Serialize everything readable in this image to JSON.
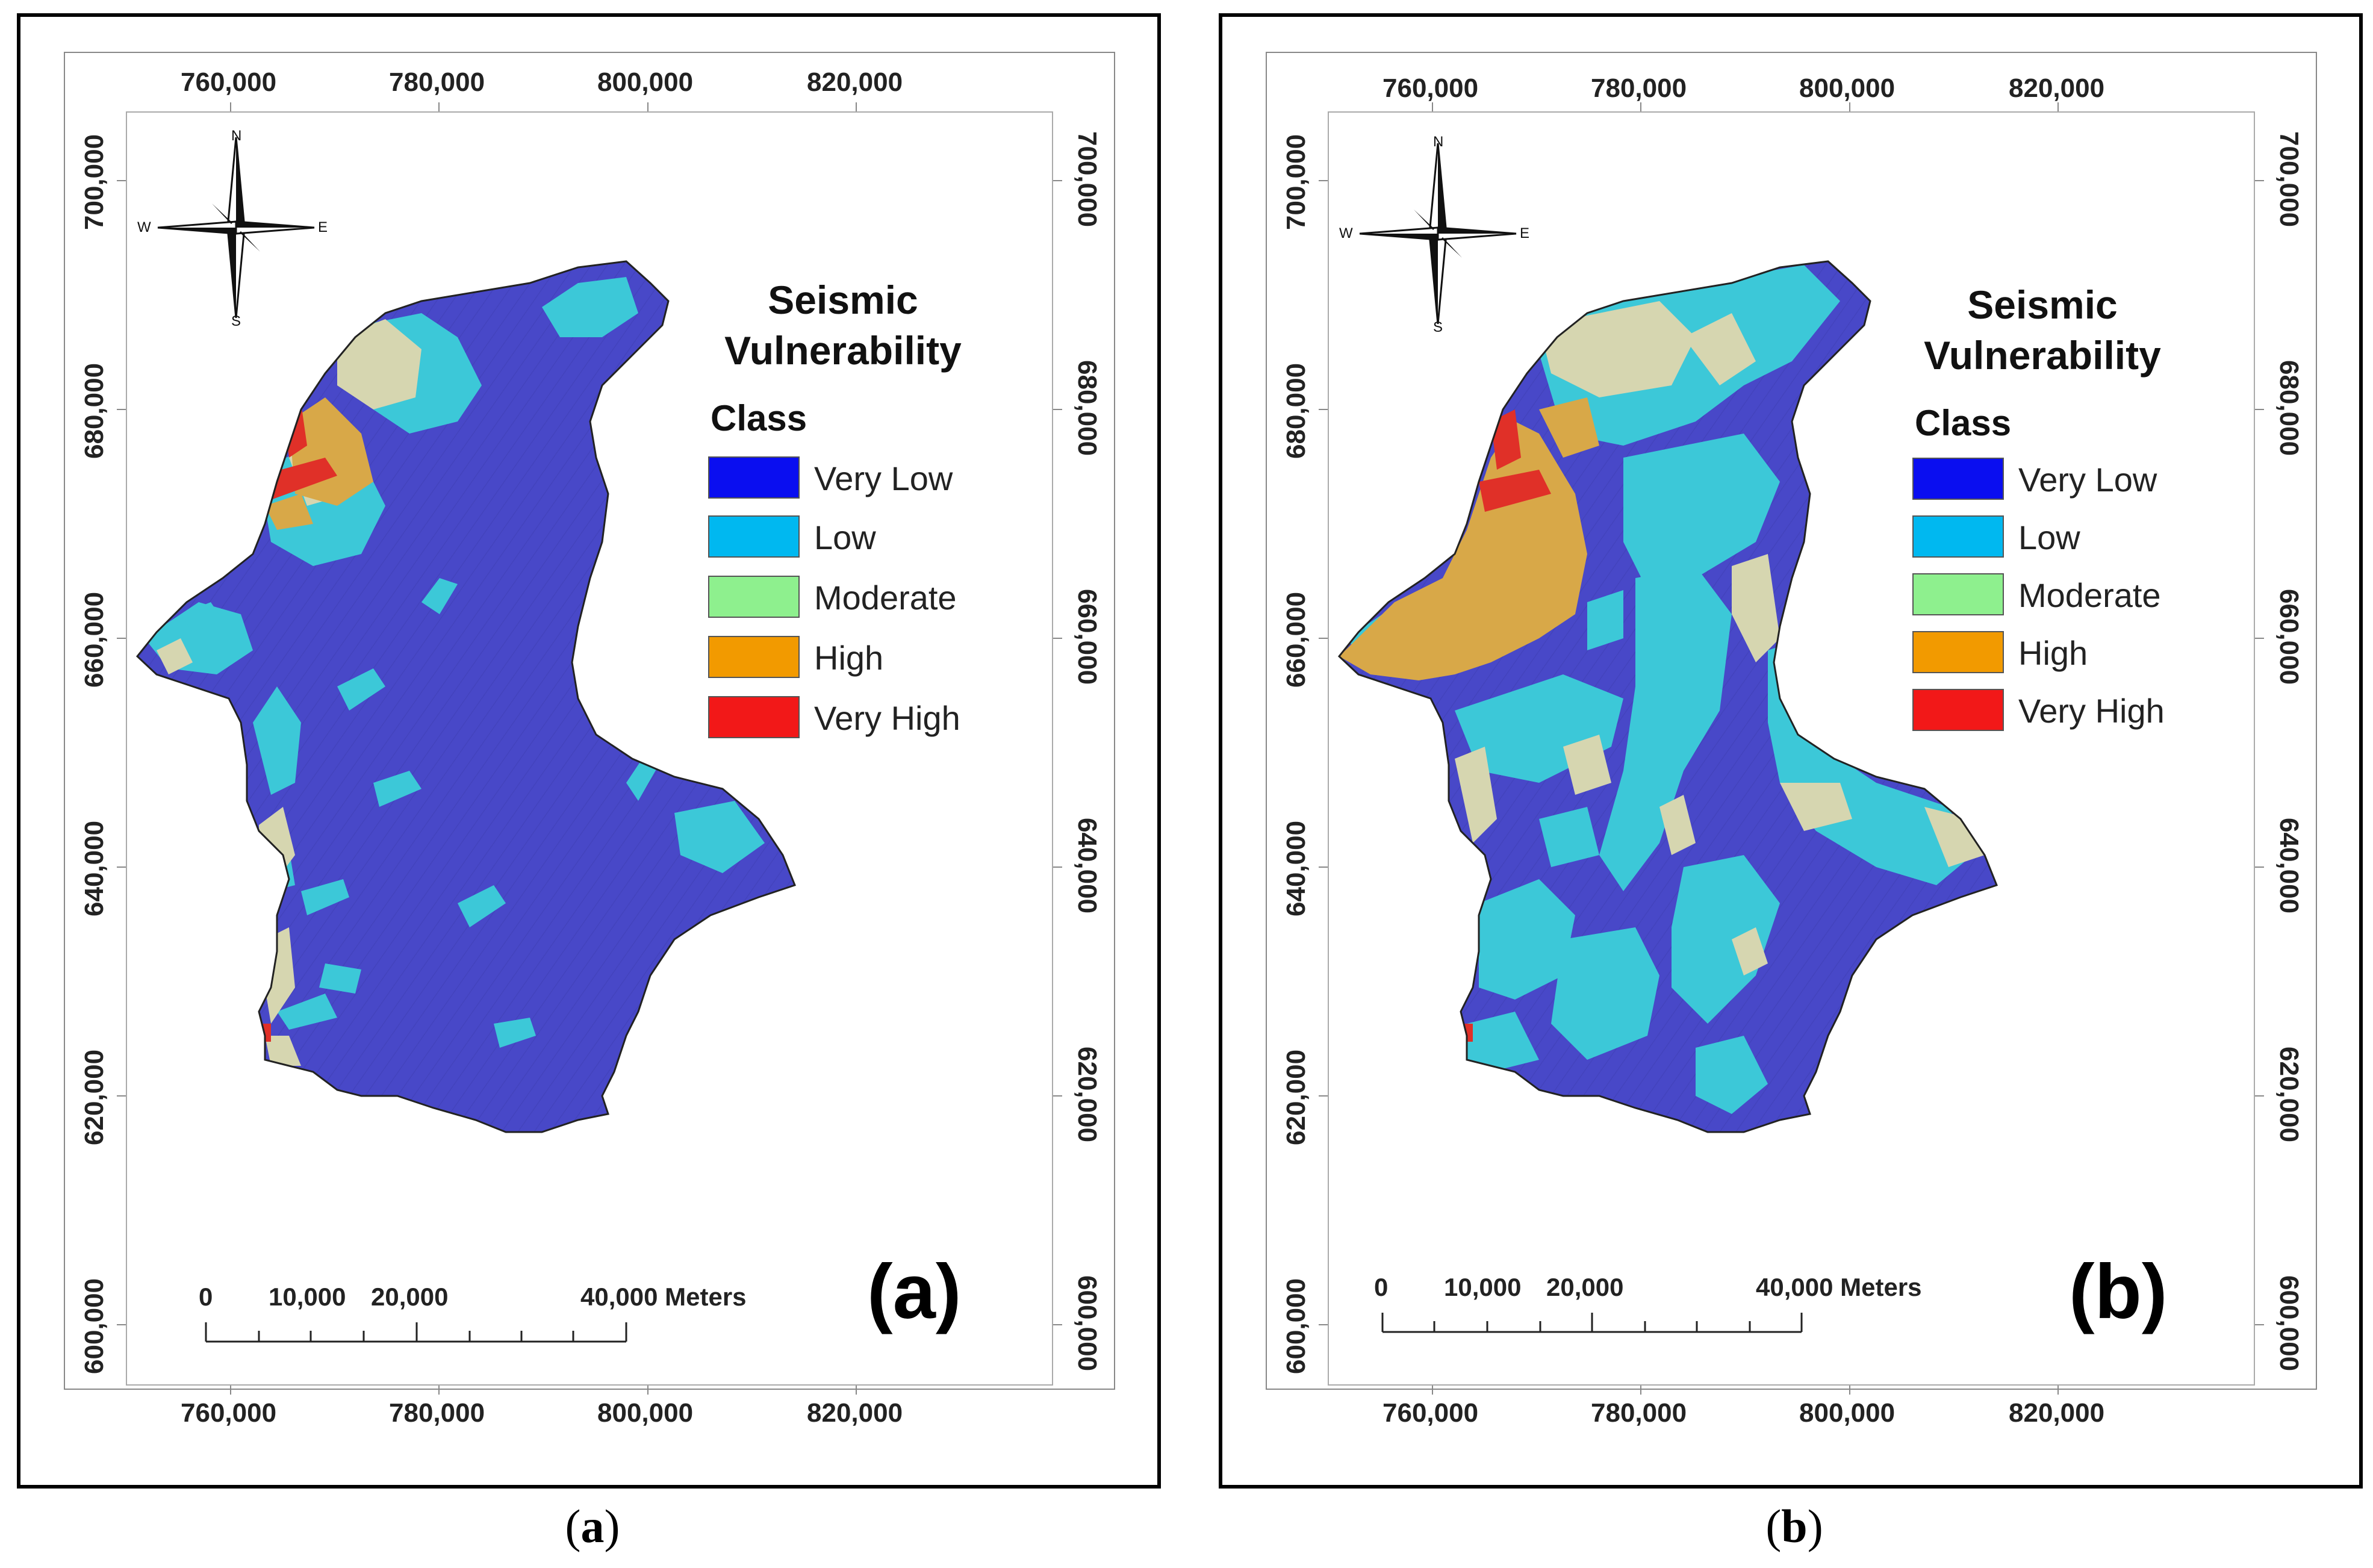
{
  "legend": {
    "title_line1": "Seismic",
    "title_line2": "Vulnerability",
    "class_label": "Class",
    "classes": [
      {
        "label": "Very Low",
        "color": "#0a0ef0"
      },
      {
        "label": "Low",
        "color": "#00b8f0"
      },
      {
        "label": "Moderate",
        "color": "#8ef08e"
      },
      {
        "label": "High",
        "color": "#f29a00"
      },
      {
        "label": "Very High",
        "color": "#f21818"
      }
    ]
  },
  "compass": {
    "n": "N",
    "s": "S",
    "e": "E",
    "w": "W"
  },
  "x_ticks": [
    "760,000",
    "780,000",
    "800,000",
    "820,000"
  ],
  "y_ticks": [
    "700,000",
    "680,000",
    "660,000",
    "640,000",
    "620,000",
    "600,000"
  ],
  "scale_bar": {
    "l0": "0",
    "l1": "10,000",
    "l2": "20,000",
    "l3": "40,000 Meters"
  },
  "panels": [
    {
      "id": "a",
      "big_label": "(a)",
      "caption_letter": "a"
    },
    {
      "id": "b",
      "big_label": "(b)",
      "caption_letter": "b"
    }
  ],
  "colors": {
    "map_very_low": "#4848c8",
    "map_low": "#3cc8d8",
    "map_moderate": "#d6d6b0",
    "map_high": "#d8a848",
    "map_very_high": "#e03028"
  }
}
